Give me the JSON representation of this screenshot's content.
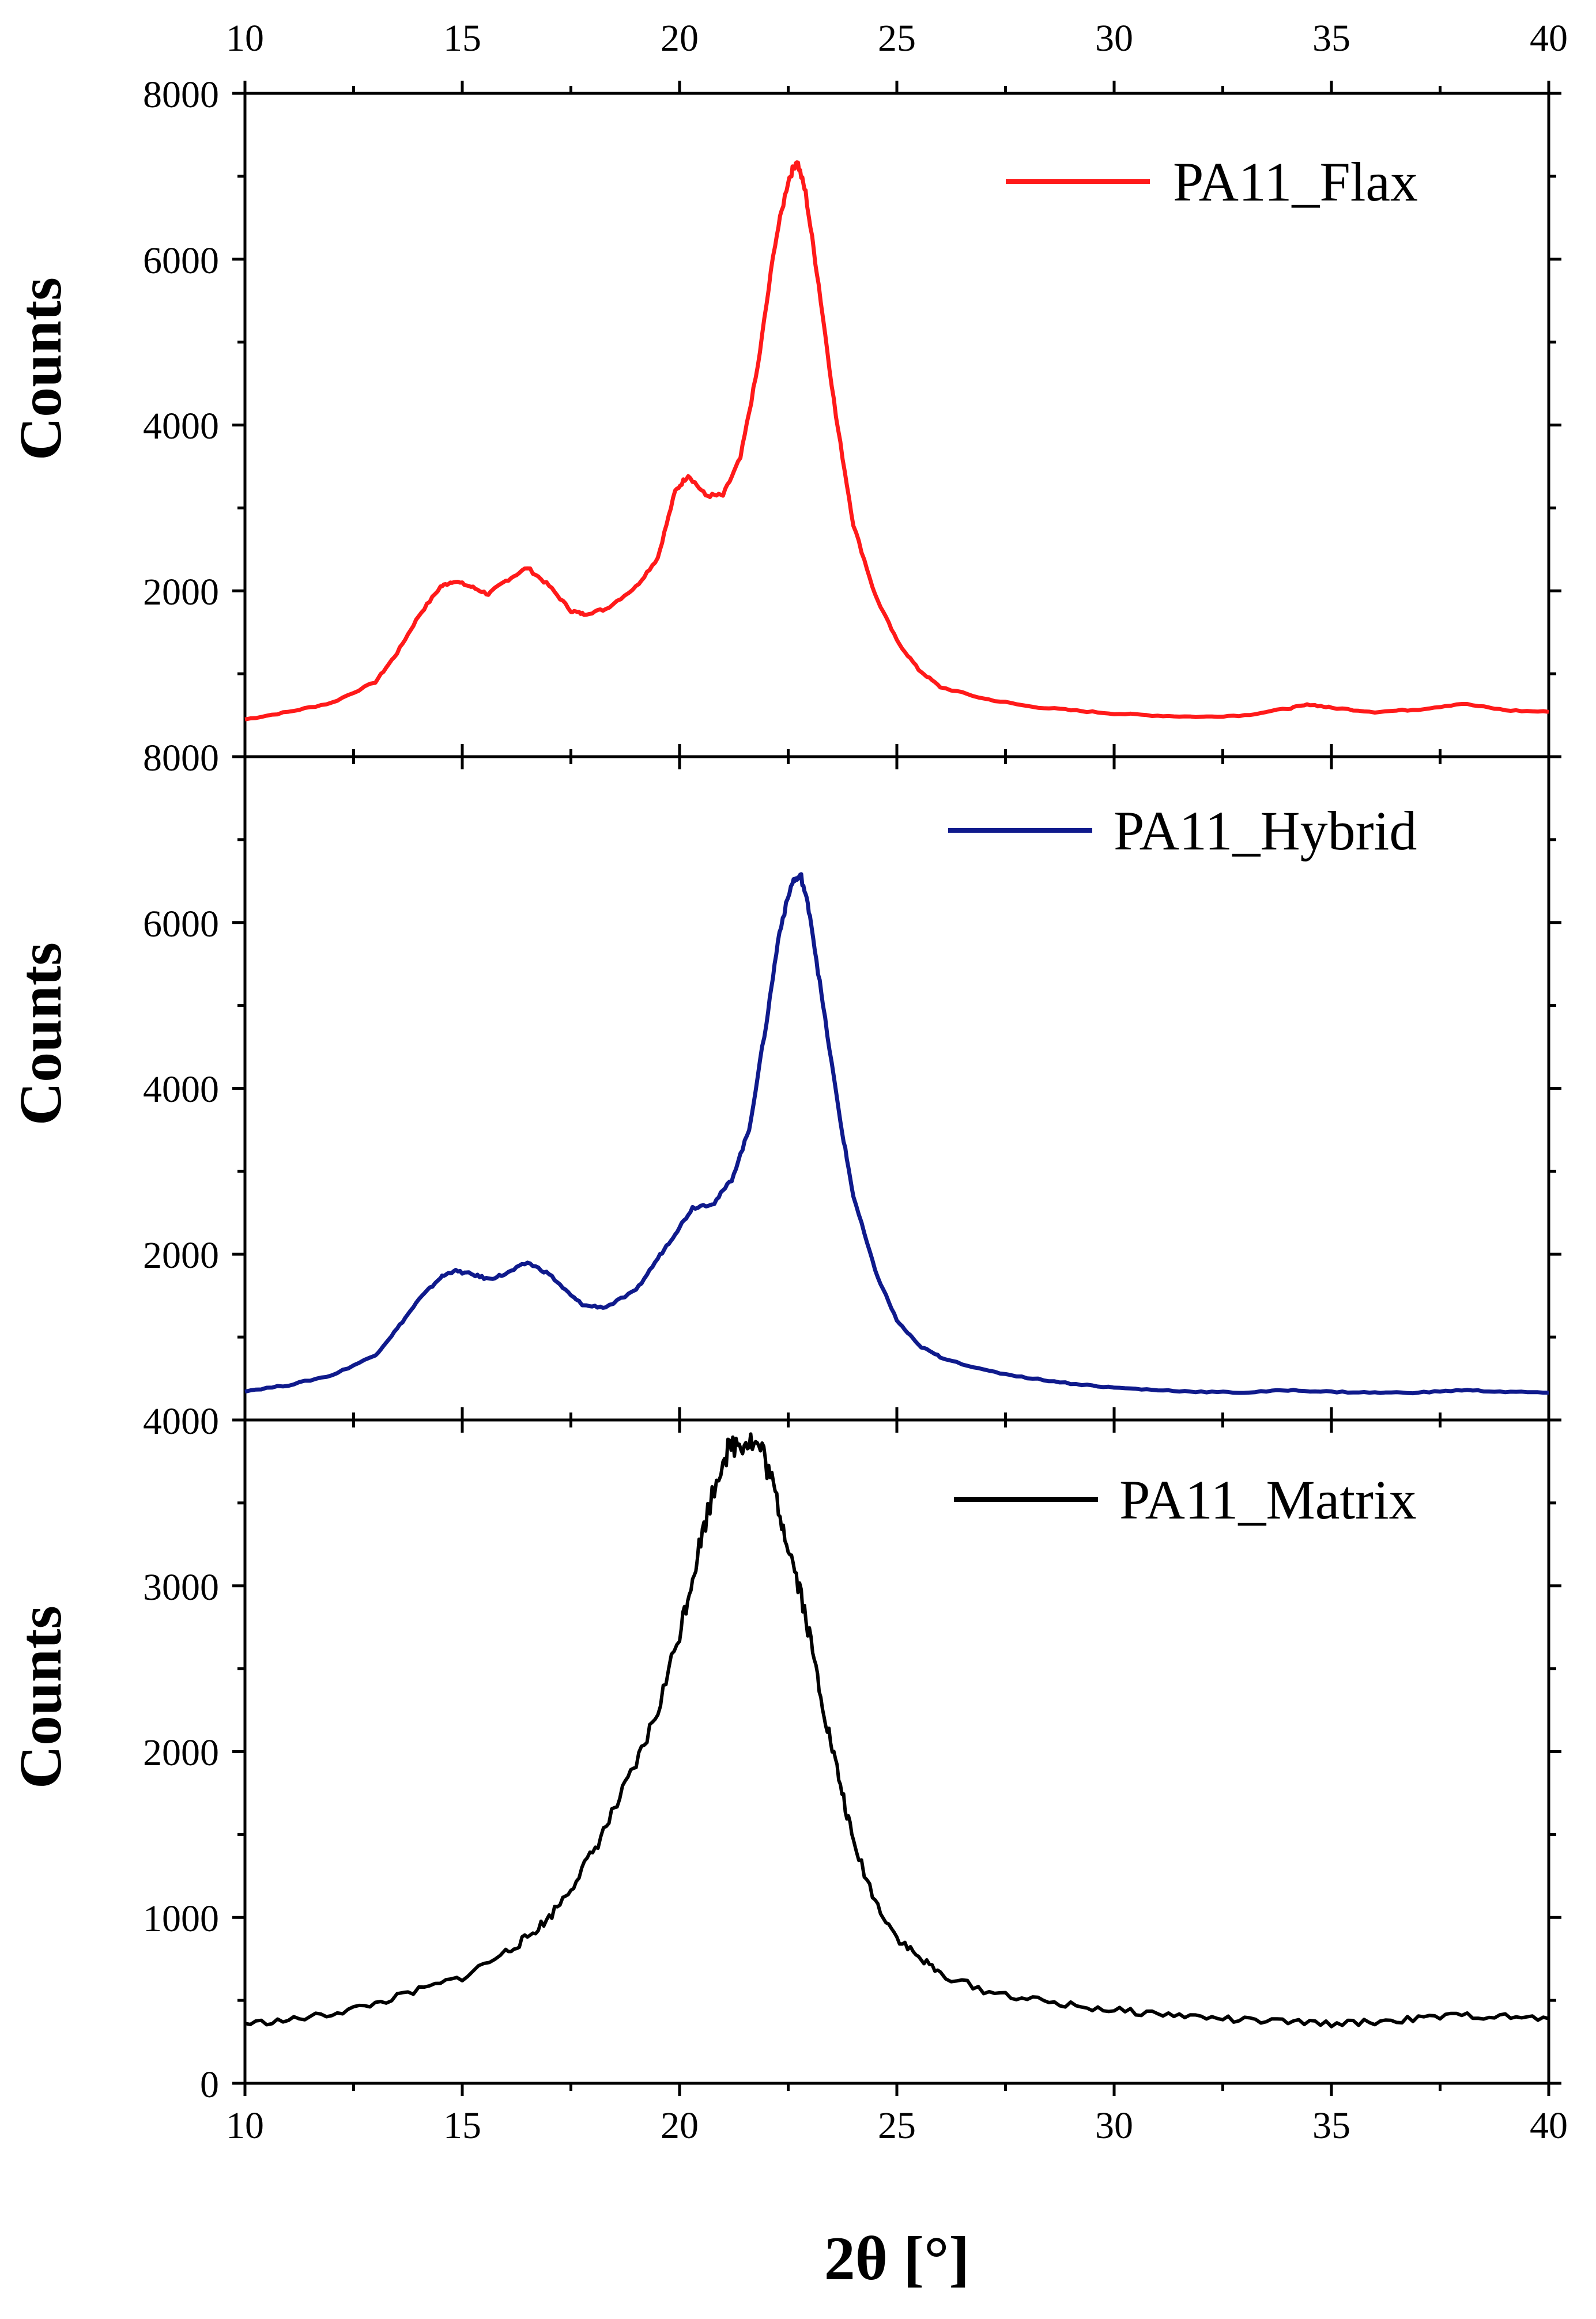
{
  "chart_data": [
    {
      "type": "line",
      "ylabel": "Counts",
      "xlim": [
        10,
        40
      ],
      "ylim": [
        0,
        8000
      ],
      "ytick_labels": [
        "8000",
        "6000",
        "4000",
        "2000"
      ],
      "legend": {
        "label": "PA11_Flax",
        "placement": "top-right"
      },
      "series": [
        {
          "name": "PA11_Flax",
          "color": "#ff1a1a",
          "x": [
            10,
            11,
            12,
            13,
            13.5,
            14,
            14.5,
            14.8,
            15.2,
            15.6,
            16,
            16.5,
            17,
            17.5,
            17.8,
            18.3,
            19,
            19.5,
            19.9,
            20.2,
            20.6,
            21,
            21.4,
            21.8,
            22.2,
            22.5,
            22.7,
            22.9,
            23.2,
            23.6,
            24,
            24.5,
            25,
            25.5,
            26,
            27,
            28,
            29,
            30,
            31,
            32,
            33,
            34,
            34.5,
            35,
            36,
            37,
            38,
            39,
            40
          ],
          "values": [
            450,
            540,
            650,
            900,
            1250,
            1700,
            2050,
            2120,
            2050,
            1960,
            2120,
            2280,
            2060,
            1760,
            1720,
            1780,
            2050,
            2400,
            3200,
            3400,
            3150,
            3150,
            3600,
            4700,
            6200,
            6950,
            7200,
            6800,
            5700,
            4100,
            2800,
            1950,
            1400,
            1050,
            840,
            700,
            610,
            560,
            520,
            495,
            480,
            500,
            580,
            630,
            590,
            540,
            570,
            640,
            560,
            540
          ]
        }
      ]
    },
    {
      "type": "line",
      "ylabel": "Counts",
      "xlim": [
        10,
        40
      ],
      "ylim": [
        0,
        8000
      ],
      "ytick_labels": [
        "8000",
        "6000",
        "4000",
        "2000"
      ],
      "legend": {
        "label": "PA11_Hybrid",
        "placement": "top-right"
      },
      "series": [
        {
          "name": "PA11_Hybrid",
          "color": "#0f1a8c",
          "x": [
            10,
            11,
            12,
            13,
            13.5,
            14,
            14.5,
            14.8,
            15.2,
            15.6,
            16,
            16.5,
            17,
            17.5,
            17.8,
            18.3,
            19,
            19.5,
            19.9,
            20.3,
            20.8,
            21.2,
            21.6,
            22,
            22.3,
            22.6,
            22.8,
            23,
            23.3,
            23.7,
            24,
            24.5,
            25,
            25.5,
            26,
            27,
            28,
            29,
            30,
            31,
            32,
            33,
            34,
            35,
            36,
            37,
            38,
            39,
            40
          ],
          "values": [
            350,
            420,
            540,
            780,
            1100,
            1450,
            1720,
            1800,
            1760,
            1700,
            1760,
            1900,
            1760,
            1500,
            1380,
            1360,
            1560,
            1950,
            2250,
            2560,
            2620,
            2900,
            3500,
            4800,
            5900,
            6500,
            6550,
            6100,
            5000,
            3600,
            2700,
            1800,
            1200,
            900,
            760,
            600,
            510,
            440,
            390,
            360,
            340,
            330,
            360,
            340,
            330,
            330,
            360,
            340,
            330
          ]
        }
      ]
    },
    {
      "type": "line",
      "ylabel": "Counts",
      "xlabel": "2θ [°]",
      "xlim": [
        10,
        40
      ],
      "ylim": [
        0,
        4000
      ],
      "xtick_labels": [
        "10",
        "15",
        "20",
        "25",
        "30",
        "35",
        "40"
      ],
      "ytick_labels": [
        "4000",
        "3000",
        "2000",
        "1000",
        "0"
      ],
      "legend": {
        "label": "PA11_Matrix",
        "placement": "top-right"
      },
      "series": [
        {
          "name": "PA11_Matrix",
          "color": "#000000",
          "x": [
            10,
            11,
            12,
            13,
            14,
            15,
            16,
            16.5,
            17,
            17.5,
            18,
            18.5,
            19,
            19.5,
            20,
            20.3,
            20.6,
            21,
            21.3,
            21.6,
            21.9,
            22.2,
            22.5,
            22.8,
            23.1,
            23.4,
            23.7,
            24,
            24.5,
            25,
            25.5,
            26,
            27,
            28,
            29,
            30,
            31,
            32,
            33,
            34,
            35,
            36,
            37,
            38,
            39,
            40
          ],
          "values": [
            360,
            380,
            420,
            480,
            560,
            640,
            790,
            880,
            1000,
            1180,
            1390,
            1650,
            1920,
            2250,
            2720,
            3060,
            3400,
            3780,
            3860,
            3880,
            3820,
            3550,
            3250,
            2950,
            2550,
            2150,
            1800,
            1450,
            1100,
            880,
            760,
            660,
            560,
            510,
            470,
            440,
            420,
            400,
            380,
            370,
            360,
            370,
            390,
            410,
            400,
            390
          ]
        }
      ]
    }
  ],
  "top_xtick_labels": [
    "10",
    "15",
    "20",
    "25",
    "30",
    "35",
    "40"
  ]
}
